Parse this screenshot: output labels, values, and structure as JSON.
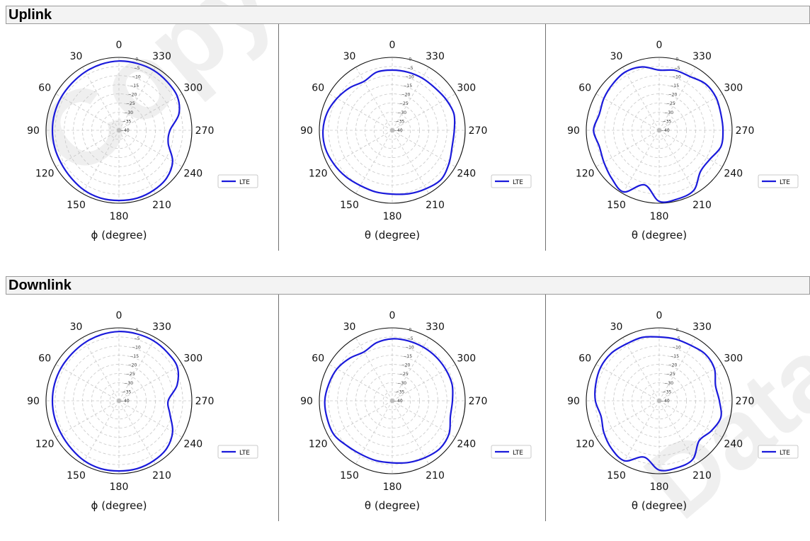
{
  "sections": [
    {
      "title": "Uplink"
    },
    {
      "title": "Downlink"
    }
  ],
  "watermark_text": "Copy Data",
  "chart_data": [
    {
      "type": "polar",
      "section": "Uplink",
      "xlabel": "ϕ (degree)",
      "legend": "LTE",
      "legend_placement": "right",
      "angle_ticks": [
        "0",
        "30",
        "60",
        "90",
        "120",
        "150",
        "180",
        "210",
        "240",
        "270",
        "300",
        "330"
      ],
      "radial_ticks": [
        "0",
        "−5",
        "−10",
        "−15",
        "−20",
        "−25",
        "−30",
        "−35",
        "−40"
      ],
      "rlim": [
        -40,
        0
      ],
      "grid": true,
      "series_color": "#1a1adb",
      "series": [
        {
          "name": "LTE",
          "angle_deg": [
            0,
            15,
            30,
            45,
            60,
            75,
            90,
            105,
            120,
            135,
            150,
            165,
            180,
            195,
            210,
            225,
            240,
            255,
            270,
            285,
            300,
            315,
            330,
            345
          ],
          "gain_db": [
            -2,
            -2.5,
            -3,
            -3.5,
            -3.5,
            -3.5,
            -3.5,
            -3.5,
            -3.5,
            -3,
            -2,
            -1.5,
            -1.5,
            -1.5,
            -2,
            -3,
            -6,
            -12,
            -12,
            -6,
            -3,
            -2.5,
            -2,
            -2
          ]
        }
      ]
    },
    {
      "type": "polar",
      "section": "Uplink",
      "xlabel": "θ (degree)",
      "legend": "LTE",
      "legend_placement": "right",
      "angle_ticks": [
        "0",
        "30",
        "60",
        "90",
        "120",
        "150",
        "180",
        "210",
        "240",
        "270",
        "300",
        "330"
      ],
      "radial_ticks": [
        "0",
        "−5",
        "−10",
        "−15",
        "−20",
        "−25",
        "−30",
        "−35",
        "−40"
      ],
      "rlim": [
        -40,
        0
      ],
      "grid": true,
      "series_color": "#1a1adb",
      "series": [
        {
          "name": "LTE",
          "angle_deg": [
            0,
            15,
            30,
            45,
            60,
            75,
            90,
            105,
            120,
            135,
            150,
            165,
            180,
            195,
            210,
            225,
            240,
            255,
            270,
            285,
            300,
            315,
            330,
            345
          ],
          "gain_db": [
            -7,
            -7,
            -9,
            -7,
            -5,
            -3,
            -2,
            -2,
            -3,
            -4,
            -5,
            -5,
            -5,
            -4,
            -3,
            -2,
            -4,
            -6,
            -6,
            -5,
            -6,
            -7,
            -7,
            -7
          ]
        }
      ]
    },
    {
      "type": "polar",
      "section": "Uplink",
      "xlabel": "θ (degree)",
      "legend": "LTE",
      "legend_placement": "right",
      "angle_ticks": [
        "0",
        "30",
        "60",
        "90",
        "120",
        "150",
        "180",
        "210",
        "240",
        "270",
        "300",
        "330"
      ],
      "radial_ticks": [
        "0",
        "−5",
        "−10",
        "−15",
        "−20",
        "−25",
        "−30",
        "−35",
        "−40"
      ],
      "rlim": [
        -40,
        0
      ],
      "grid": true,
      "series_color": "#1a1adb",
      "series": [
        {
          "name": "LTE",
          "angle_deg": [
            0,
            15,
            30,
            45,
            60,
            75,
            90,
            105,
            120,
            135,
            150,
            165,
            180,
            195,
            210,
            225,
            240,
            255,
            270,
            285,
            300,
            315,
            330,
            345
          ],
          "gain_db": [
            -7,
            -4,
            -3,
            -4,
            -5,
            -6,
            -4,
            -6,
            -5,
            -3,
            -1,
            -9,
            -1,
            -1,
            -2,
            -8,
            -8,
            -5,
            -5,
            -5,
            -4,
            -4,
            -6,
            -6
          ]
        }
      ]
    },
    {
      "type": "polar",
      "section": "Downlink",
      "xlabel": "ϕ (degree)",
      "legend": "LTE",
      "legend_placement": "right",
      "angle_ticks": [
        "0",
        "30",
        "60",
        "90",
        "120",
        "150",
        "180",
        "210",
        "240",
        "270",
        "300",
        "330"
      ],
      "radial_ticks": [
        "0",
        "−5",
        "−10",
        "−15",
        "−20",
        "−25",
        "−30",
        "−35",
        "−40"
      ],
      "rlim": [
        -40,
        0
      ],
      "grid": true,
      "series_color": "#1a1adb",
      "series": [
        {
          "name": "LTE",
          "angle_deg": [
            0,
            15,
            30,
            45,
            60,
            75,
            90,
            105,
            120,
            135,
            150,
            165,
            180,
            195,
            210,
            225,
            240,
            255,
            270,
            285,
            300,
            315,
            330,
            345
          ],
          "gain_db": [
            -2,
            -2.5,
            -3,
            -3.5,
            -3.5,
            -3.5,
            -3.5,
            -3.5,
            -3.5,
            -3,
            -2,
            -1.5,
            -1.5,
            -1.5,
            -2,
            -3,
            -6,
            -11,
            -13,
            -7,
            -3,
            -2.5,
            -2,
            -2
          ]
        }
      ]
    },
    {
      "type": "polar",
      "section": "Downlink",
      "xlabel": "θ (degree)",
      "legend": "LTE",
      "legend_placement": "right",
      "angle_ticks": [
        "0",
        "30",
        "60",
        "90",
        "120",
        "150",
        "180",
        "210",
        "240",
        "270",
        "300",
        "330"
      ],
      "radial_ticks": [
        "0",
        "−5",
        "−10",
        "−15",
        "−20",
        "−25",
        "−30",
        "−35",
        "−40"
      ],
      "rlim": [
        -40,
        0
      ],
      "grid": true,
      "series_color": "#1a1adb",
      "series": [
        {
          "name": "LTE",
          "angle_deg": [
            0,
            15,
            30,
            45,
            60,
            75,
            90,
            105,
            120,
            135,
            150,
            165,
            180,
            195,
            210,
            225,
            240,
            255,
            270,
            285,
            300,
            315,
            330,
            345
          ],
          "gain_db": [
            -6,
            -7,
            -9,
            -7,
            -5,
            -4,
            -3,
            -3,
            -3,
            -5,
            -6,
            -6,
            -6,
            -5,
            -4,
            -3,
            -4,
            -7,
            -7,
            -6,
            -6,
            -6,
            -6,
            -6
          ]
        }
      ]
    },
    {
      "type": "polar",
      "section": "Downlink",
      "xlabel": "θ (degree)",
      "legend": "LTE",
      "legend_placement": "right",
      "angle_ticks": [
        "0",
        "30",
        "60",
        "90",
        "120",
        "150",
        "180",
        "210",
        "240",
        "270",
        "300",
        "330"
      ],
      "radial_ticks": [
        "0",
        "−5",
        "−10",
        "−15",
        "−20",
        "−25",
        "−30",
        "−35",
        "−40"
      ],
      "rlim": [
        -40,
        0
      ],
      "grid": true,
      "series_color": "#1a1adb",
      "series": [
        {
          "name": "LTE",
          "angle_deg": [
            0,
            15,
            30,
            45,
            60,
            75,
            90,
            105,
            120,
            135,
            150,
            165,
            180,
            195,
            210,
            225,
            240,
            255,
            270,
            285,
            300,
            315,
            330,
            345
          ],
          "gain_db": [
            -5,
            -4,
            -4,
            -3,
            -3,
            -4,
            -5,
            -7,
            -5,
            -3,
            -2,
            -8,
            -2,
            -2,
            -3,
            -9,
            -7,
            -5,
            -7,
            -8,
            -5,
            -4,
            -5,
            -5
          ]
        }
      ]
    }
  ]
}
